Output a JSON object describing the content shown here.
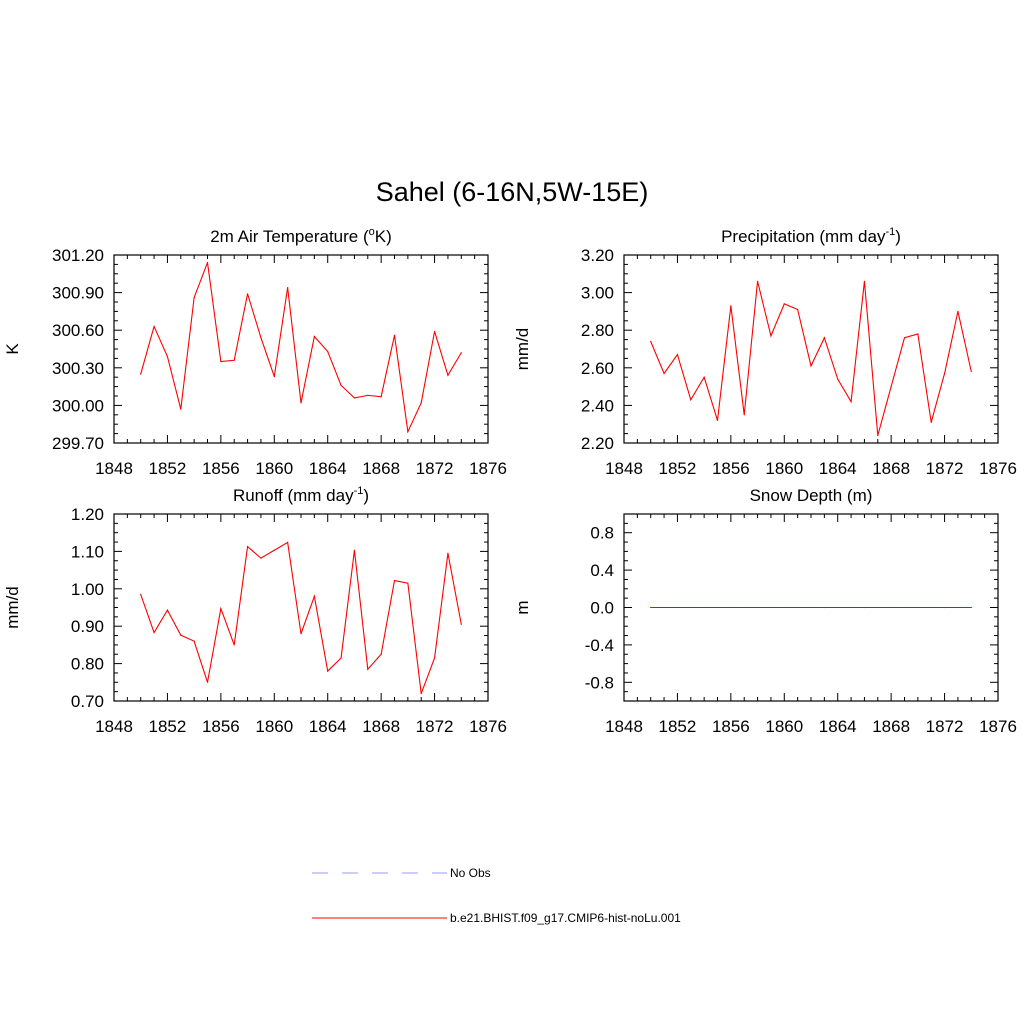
{
  "figure": {
    "title": "Sahel (6-16N,5W-15E)"
  },
  "legend": {
    "items": [
      {
        "label": "No Obs",
        "color": "#9999ff",
        "dashed": true
      },
      {
        "label": "b.e21.BHIST.f09_g17.CMIP6-hist-noLu.001",
        "color": "#ff0000",
        "dashed": false
      }
    ]
  },
  "chart_data": [
    {
      "type": "line",
      "title": "2m Air Temperature (",
      "title_sup": "o",
      "title_after": "K)",
      "ylabel": "K",
      "xlim": [
        1848,
        1876
      ],
      "ylim": [
        299.7,
        301.2
      ],
      "xticks": [
        1848,
        1852,
        1856,
        1860,
        1864,
        1868,
        1872,
        1876
      ],
      "yticks": [
        "299.70",
        "300.00",
        "300.30",
        "300.60",
        "300.90",
        "301.20"
      ],
      "ytick_values": [
        299.7,
        300.0,
        300.3,
        300.6,
        300.9,
        301.2
      ],
      "series": [
        {
          "color": "#ff0000",
          "x": [
            1850,
            1851,
            1852,
            1853,
            1854,
            1855,
            1856,
            1857,
            1858,
            1859,
            1860,
            1861,
            1862,
            1863,
            1864,
            1865,
            1866,
            1867,
            1868,
            1869,
            1870,
            1871,
            1872,
            1873,
            1874
          ],
          "y": [
            300.25,
            300.63,
            300.39,
            299.97,
            300.86,
            301.14,
            300.35,
            300.36,
            300.89,
            300.54,
            300.23,
            300.94,
            300.02,
            300.55,
            300.43,
            300.16,
            300.06,
            300.08,
            300.07,
            300.56,
            299.79,
            300.02,
            300.59,
            300.24,
            300.42
          ]
        }
      ]
    },
    {
      "type": "line",
      "title": "Precipitation (mm day",
      "title_sup": "-1",
      "title_after": ")",
      "ylabel": "mm/d",
      "xlim": [
        1848,
        1876
      ],
      "ylim": [
        2.2,
        3.2
      ],
      "xticks": [
        1848,
        1852,
        1856,
        1860,
        1864,
        1868,
        1872,
        1876
      ],
      "yticks": [
        "2.20",
        "2.40",
        "2.60",
        "2.80",
        "3.00",
        "3.20"
      ],
      "ytick_values": [
        2.2,
        2.4,
        2.6,
        2.8,
        3.0,
        3.2
      ],
      "series": [
        {
          "color": "#ff0000",
          "x": [
            1850,
            1851,
            1852,
            1853,
            1854,
            1855,
            1856,
            1857,
            1858,
            1859,
            1860,
            1861,
            1862,
            1863,
            1864,
            1865,
            1866,
            1867,
            1868,
            1869,
            1870,
            1871,
            1872,
            1873,
            1874
          ],
          "y": [
            2.74,
            2.57,
            2.67,
            2.43,
            2.55,
            2.32,
            2.93,
            2.35,
            3.06,
            2.77,
            2.94,
            2.91,
            2.61,
            2.76,
            2.54,
            2.42,
            3.06,
            2.24,
            2.5,
            2.76,
            2.78,
            2.31,
            2.57,
            2.9,
            2.58
          ]
        }
      ]
    },
    {
      "type": "line",
      "title": "Runoff (mm day",
      "title_sup": "-1",
      "title_after": ")",
      "ylabel": "mm/d",
      "xlim": [
        1848,
        1876
      ],
      "ylim": [
        0.7,
        1.2
      ],
      "xticks": [
        1848,
        1852,
        1856,
        1860,
        1864,
        1868,
        1872,
        1876
      ],
      "yticks": [
        "0.70",
        "0.80",
        "0.90",
        "1.00",
        "1.10",
        "1.20"
      ],
      "ytick_values": [
        0.7,
        0.8,
        0.9,
        1.0,
        1.1,
        1.2
      ],
      "series": [
        {
          "color": "#ff0000",
          "x": [
            1850,
            1851,
            1852,
            1853,
            1854,
            1855,
            1856,
            1857,
            1858,
            1859,
            1860,
            1861,
            1862,
            1863,
            1864,
            1865,
            1866,
            1867,
            1868,
            1869,
            1870,
            1871,
            1872,
            1873,
            1874
          ],
          "y": [
            0.985,
            0.883,
            0.943,
            0.876,
            0.86,
            0.75,
            0.947,
            0.85,
            1.113,
            1.082,
            1.103,
            1.124,
            0.88,
            0.98,
            0.78,
            0.815,
            1.103,
            0.785,
            0.825,
            1.022,
            1.015,
            0.72,
            0.815,
            1.095,
            0.905
          ]
        }
      ]
    },
    {
      "type": "line",
      "title": "Snow Depth (m)",
      "title_sup": "",
      "title_after": "",
      "ylabel": "m",
      "xlim": [
        1848,
        1876
      ],
      "ylim": [
        -1.0,
        1.0
      ],
      "xticks": [
        1848,
        1852,
        1856,
        1860,
        1864,
        1868,
        1872,
        1876
      ],
      "yticks": [
        "-0.8",
        "-0.4",
        "0.0",
        "0.4",
        "0.8"
      ],
      "ytick_values": [
        -0.8,
        -0.4,
        0.0,
        0.4,
        0.8
      ],
      "series": [
        {
          "color": "#ff0000",
          "x": [
            1850,
            1851,
            1852,
            1853,
            1854,
            1855,
            1856,
            1857,
            1858,
            1859,
            1860,
            1861,
            1862,
            1863,
            1864,
            1865,
            1866,
            1867,
            1868,
            1869,
            1870,
            1871,
            1872,
            1873,
            1874
          ],
          "y": [
            0,
            0,
            0,
            0,
            0,
            0,
            0,
            0,
            0,
            0,
            0,
            0,
            0,
            0,
            0,
            0,
            0,
            0,
            0,
            0,
            0,
            0,
            0,
            0,
            0
          ]
        }
      ]
    }
  ]
}
